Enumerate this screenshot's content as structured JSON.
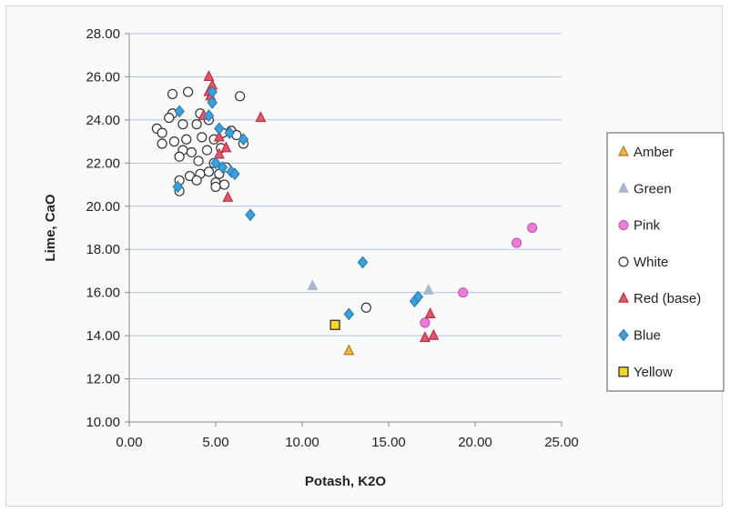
{
  "chart_data": {
    "type": "scatter",
    "title": "",
    "xlabel": "Potash, K2O",
    "ylabel": "Lime, CaO",
    "xlim": [
      0,
      25
    ],
    "ylim": [
      10,
      28
    ],
    "x_ticks": [
      "0.00",
      "5.00",
      "10.00",
      "15.00",
      "20.00",
      "25.00"
    ],
    "y_ticks": [
      "10.00",
      "12.00",
      "14.00",
      "16.00",
      "18.00",
      "20.00",
      "22.00",
      "24.00",
      "26.00",
      "28.00"
    ],
    "grid": "horizontal",
    "legend_position": "right",
    "series": [
      {
        "name": "Amber",
        "marker": "triangle",
        "fill": "#f5b54a",
        "stroke": "#b07a18",
        "points": [
          [
            12.7,
            13.3
          ]
        ]
      },
      {
        "name": "Green",
        "marker": "triangle",
        "fill": "#a9b8cf",
        "stroke": "#a9b8cf",
        "points": [
          [
            10.6,
            16.3
          ],
          [
            17.3,
            16.1
          ]
        ]
      },
      {
        "name": "Pink",
        "marker": "circle",
        "fill": "#e97fd6",
        "stroke": "#c85bb6",
        "points": [
          [
            22.4,
            18.3
          ],
          [
            23.3,
            19.0
          ],
          [
            19.3,
            16.0
          ],
          [
            17.1,
            14.6
          ]
        ]
      },
      {
        "name": "White",
        "marker": "circle",
        "fill": "#ffffff",
        "stroke": "#333333",
        "points": [
          [
            2.5,
            25.2
          ],
          [
            3.4,
            25.3
          ],
          [
            6.4,
            25.1
          ],
          [
            2.5,
            24.3
          ],
          [
            2.3,
            24.1
          ],
          [
            4.1,
            24.3
          ],
          [
            4.6,
            24.0
          ],
          [
            1.6,
            23.6
          ],
          [
            1.9,
            23.4
          ],
          [
            3.1,
            23.8
          ],
          [
            3.9,
            23.8
          ],
          [
            5.4,
            23.4
          ],
          [
            5.9,
            23.5
          ],
          [
            6.2,
            23.3
          ],
          [
            2.6,
            23.0
          ],
          [
            3.3,
            23.1
          ],
          [
            4.2,
            23.2
          ],
          [
            4.9,
            23.1
          ],
          [
            6.6,
            22.9
          ],
          [
            1.9,
            22.9
          ],
          [
            3.1,
            22.6
          ],
          [
            3.6,
            22.5
          ],
          [
            4.5,
            22.6
          ],
          [
            5.3,
            22.7
          ],
          [
            2.9,
            22.3
          ],
          [
            4.0,
            22.1
          ],
          [
            4.9,
            22.0
          ],
          [
            5.6,
            21.8
          ],
          [
            3.5,
            21.4
          ],
          [
            4.1,
            21.5
          ],
          [
            4.6,
            21.6
          ],
          [
            5.2,
            21.5
          ],
          [
            2.9,
            21.2
          ],
          [
            3.9,
            21.2
          ],
          [
            5.0,
            21.1
          ],
          [
            5.5,
            21.0
          ],
          [
            2.9,
            20.7
          ],
          [
            5.0,
            20.9
          ],
          [
            13.7,
            15.3
          ]
        ]
      },
      {
        "name": "Red (base)",
        "marker": "triangle",
        "fill": "#e8556a",
        "stroke": "#b23344",
        "points": [
          [
            4.6,
            26.0
          ],
          [
            4.8,
            25.6
          ],
          [
            4.6,
            25.3
          ],
          [
            4.7,
            25.1
          ],
          [
            7.6,
            24.1
          ],
          [
            4.3,
            24.2
          ],
          [
            5.2,
            23.2
          ],
          [
            5.6,
            22.7
          ],
          [
            5.2,
            22.4
          ],
          [
            5.7,
            20.4
          ],
          [
            17.4,
            15.0
          ],
          [
            17.1,
            13.9
          ],
          [
            17.6,
            14.0
          ]
        ]
      },
      {
        "name": "Blue",
        "marker": "diamond",
        "fill": "#3fa0d8",
        "stroke": "#2a7fb5",
        "points": [
          [
            4.8,
            25.3
          ],
          [
            2.9,
            24.4
          ],
          [
            4.6,
            24.2
          ],
          [
            4.8,
            24.8
          ],
          [
            5.2,
            23.6
          ],
          [
            5.8,
            23.4
          ],
          [
            6.6,
            23.1
          ],
          [
            5.0,
            22.0
          ],
          [
            5.4,
            21.8
          ],
          [
            5.9,
            21.6
          ],
          [
            6.1,
            21.5
          ],
          [
            2.8,
            20.9
          ],
          [
            7.0,
            19.6
          ],
          [
            13.5,
            17.4
          ],
          [
            12.7,
            15.0
          ],
          [
            16.5,
            15.6
          ],
          [
            16.7,
            15.8
          ]
        ]
      },
      {
        "name": "Yellow",
        "marker": "square",
        "fill": "#f6d52b",
        "stroke": "#222222",
        "points": [
          [
            11.9,
            14.5
          ]
        ]
      }
    ]
  }
}
